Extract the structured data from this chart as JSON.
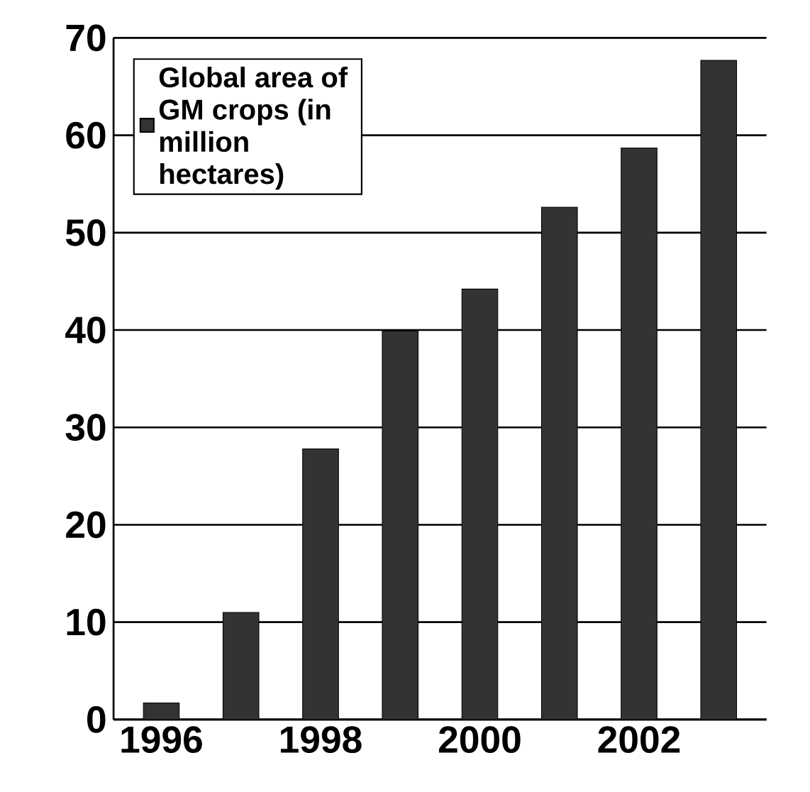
{
  "chart_data": {
    "type": "bar",
    "categories": [
      "1996",
      null,
      "1998",
      null,
      "2000",
      null,
      "2002",
      null
    ],
    "series": [
      {
        "name": "Global area of GM crops (in million hectares)",
        "color": "#333333",
        "values": [
          1.7,
          11,
          27.8,
          39.9,
          44.2,
          52.6,
          58.7,
          67.7
        ]
      }
    ],
    "ylim": [
      0,
      70
    ],
    "yticks": [
      0,
      10,
      20,
      30,
      40,
      50,
      60,
      70
    ],
    "grid": "y",
    "legend": "top left"
  }
}
